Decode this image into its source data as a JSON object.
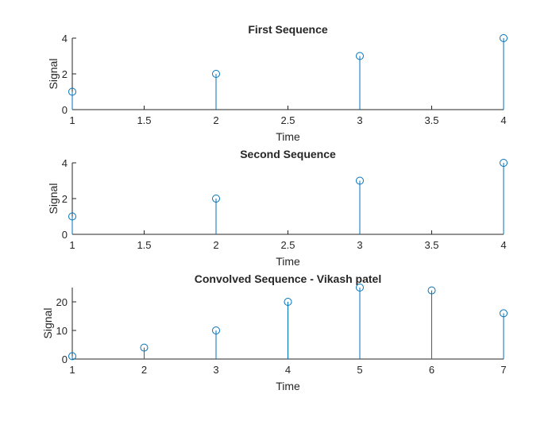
{
  "colors": {
    "series": "#0072BD",
    "axis": "#262626",
    "background": "#ffffff"
  },
  "chart_data": [
    {
      "type": "stem",
      "title": "First Sequence",
      "xlabel": "Time",
      "ylabel": "Signal",
      "xlim": [
        1,
        4
      ],
      "ylim": [
        0,
        4
      ],
      "xticks": [
        1,
        1.5,
        2,
        2.5,
        3,
        3.5,
        4
      ],
      "yticks": [
        0,
        2,
        4
      ],
      "x": [
        1,
        2,
        3,
        4
      ],
      "y": [
        1,
        2,
        3,
        4
      ],
      "grid": false,
      "legend": "none"
    },
    {
      "type": "stem",
      "title": "Second Sequence",
      "xlabel": "Time",
      "ylabel": "Signal",
      "xlim": [
        1,
        4
      ],
      "ylim": [
        0,
        4
      ],
      "xticks": [
        1,
        1.5,
        2,
        2.5,
        3,
        3.5,
        4
      ],
      "yticks": [
        0,
        2,
        4
      ],
      "x": [
        1,
        2,
        3,
        4
      ],
      "y": [
        1,
        2,
        3,
        4
      ],
      "grid": false,
      "legend": "none"
    },
    {
      "type": "stem",
      "title": "Convolved Sequence - Vikash patel",
      "xlabel": "Time",
      "ylabel": "Signal",
      "xlim": [
        1,
        7
      ],
      "ylim": [
        0,
        25
      ],
      "xticks": [
        1,
        2,
        3,
        4,
        5,
        6,
        7
      ],
      "yticks": [
        0,
        10,
        20
      ],
      "x": [
        1,
        2,
        3,
        4,
        5,
        6,
        7
      ],
      "y": [
        1,
        4,
        10,
        20,
        25,
        24,
        16
      ],
      "grid": false,
      "legend": "none"
    }
  ]
}
